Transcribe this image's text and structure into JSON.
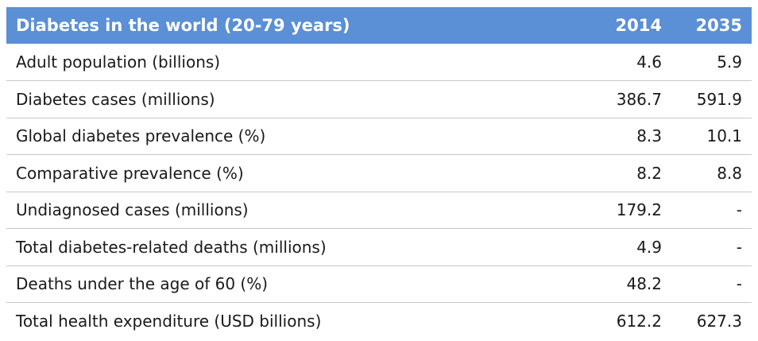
{
  "chart_data": {
    "type": "table",
    "columns": [
      "Diabetes in the world (20-79 years)",
      "2014",
      "2035"
    ],
    "rows": [
      [
        "Adult population (billions)",
        "4.6",
        "5.9"
      ],
      [
        "Diabetes cases (millions)",
        "386.7",
        "591.9"
      ],
      [
        "Global diabetes prevalence (%)",
        "8.3",
        "10.1"
      ],
      [
        "Comparative prevalence (%)",
        "8.2",
        "8.8"
      ],
      [
        "Undiagnosed cases (millions)",
        "179.2",
        "-"
      ],
      [
        "Total diabetes-related deaths (millions)",
        "4.9",
        "-"
      ],
      [
        "Deaths under the age of 60 (%)",
        "48.2",
        "-"
      ],
      [
        "Total health expenditure (USD billions)",
        "612.2",
        "627.3"
      ]
    ]
  },
  "colors": {
    "header_background": "#5b8fd6",
    "header_text": "#ffffff",
    "row_divider": "#c8c8c8"
  }
}
